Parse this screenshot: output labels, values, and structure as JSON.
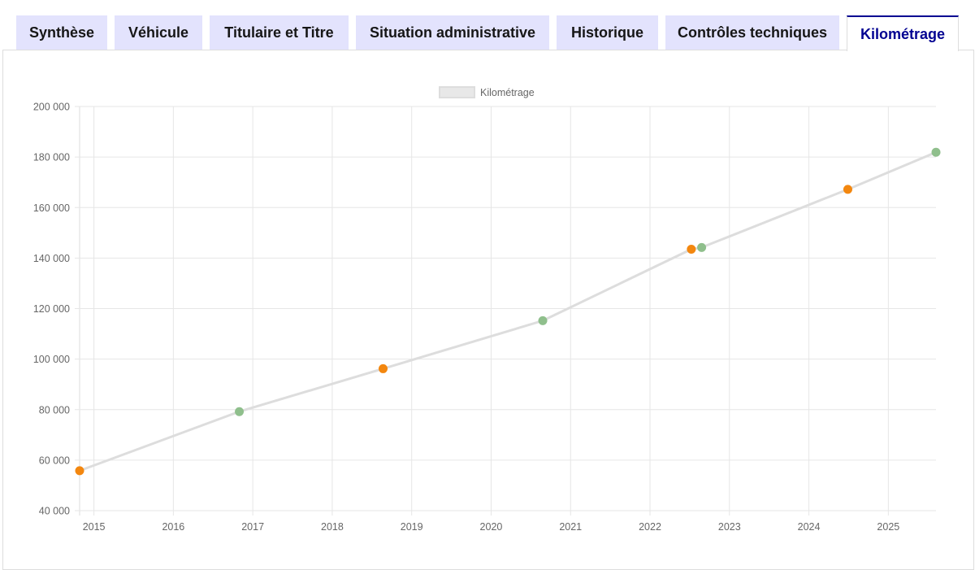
{
  "tabs": [
    {
      "label": "Synthèse",
      "active": false
    },
    {
      "label": "Véhicule",
      "active": false
    },
    {
      "label": "Titulaire et Titre",
      "active": false
    },
    {
      "label": "Situation administrative",
      "active": false
    },
    {
      "label": "Historique",
      "active": false
    },
    {
      "label": "Contrôles techniques",
      "active": false
    },
    {
      "label": "Kilométrage",
      "active": true
    }
  ],
  "chart_data": {
    "type": "line",
    "legend": {
      "label": "Kilométrage",
      "position": "top"
    },
    "x_ticks": [
      "2015",
      "2016",
      "2017",
      "2018",
      "2019",
      "2020",
      "2021",
      "2022",
      "2023",
      "2024",
      "2025"
    ],
    "y_ticks": [
      "40 000",
      "60 000",
      "80 000",
      "100 000",
      "120 000",
      "140 000",
      "160 000",
      "180 000",
      "200 000"
    ],
    "xlim": [
      2014.82,
      2025.6
    ],
    "ylim": [
      40000,
      200000
    ],
    "grid": true,
    "series": [
      {
        "name": "Kilométrage",
        "color": "#dddddd",
        "points": [
          {
            "x": 2014.82,
            "y": 55800,
            "status": "orange"
          },
          {
            "x": 2016.83,
            "y": 79200,
            "status": "green"
          },
          {
            "x": 2018.64,
            "y": 96200,
            "status": "orange"
          },
          {
            "x": 2020.65,
            "y": 115200,
            "status": "green"
          },
          {
            "x": 2022.52,
            "y": 143500,
            "status": "orange"
          },
          {
            "x": 2022.65,
            "y": 144200,
            "status": "green"
          },
          {
            "x": 2024.49,
            "y": 167200,
            "status": "orange"
          },
          {
            "x": 2025.6,
            "y": 181900,
            "status": "green"
          }
        ]
      }
    ],
    "status_colors": {
      "orange": "#f3870f",
      "green": "#8fbf8c"
    }
  }
}
